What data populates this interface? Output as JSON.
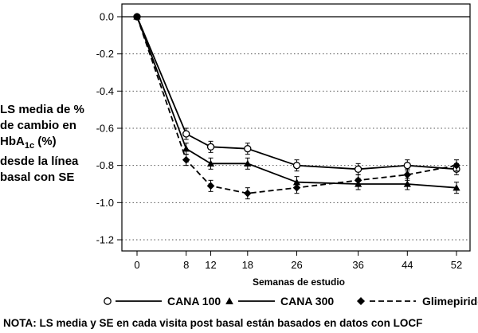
{
  "chart_data": {
    "type": "line",
    "ylabel_lines": [
      "LS media de %",
      "de cambio en",
      "HbA",
      "1c",
      " (%)",
      "desde la línea",
      "basal con SE"
    ],
    "xlabel": "Semanas de estudio",
    "x": [
      0,
      8,
      12,
      18,
      26,
      36,
      44,
      52
    ],
    "x_ticks": [
      "0",
      "8",
      "12",
      "18",
      "26",
      "36",
      "44",
      "52"
    ],
    "y_ticks": [
      "0.0",
      "-0.2",
      "-0.4",
      "-0.6",
      "-0.8",
      "-1.0",
      "-1.2"
    ],
    "y_tick_values": [
      0.0,
      -0.2,
      -0.4,
      -0.6,
      -0.8,
      -1.0,
      -1.2
    ],
    "ylim": [
      -1.3,
      0.05
    ],
    "grid": "horizontal dotted",
    "reference_line": 0.0,
    "series": [
      {
        "name": "CANA 100",
        "marker": "open-circle",
        "dash": "solid",
        "values": [
          0.0,
          -0.63,
          -0.7,
          -0.71,
          -0.8,
          -0.82,
          -0.8,
          -0.82
        ],
        "se": [
          0.01,
          0.03,
          0.03,
          0.03,
          0.03,
          0.03,
          0.03,
          0.03
        ]
      },
      {
        "name": "CANA 300",
        "marker": "filled-triangle",
        "dash": "solid",
        "values": [
          0.0,
          -0.71,
          -0.79,
          -0.79,
          -0.89,
          -0.9,
          -0.9,
          -0.92
        ],
        "se": [
          0.01,
          0.03,
          0.03,
          0.03,
          0.03,
          0.03,
          0.03,
          0.03
        ]
      },
      {
        "name": "Glimepiride",
        "marker": "filled-diamond",
        "dash": "dashed",
        "values": [
          0.0,
          -0.77,
          -0.91,
          -0.95,
          -0.92,
          -0.88,
          -0.85,
          -0.8
        ],
        "se": [
          0.01,
          0.03,
          0.03,
          0.03,
          0.03,
          0.03,
          0.03,
          0.03
        ]
      }
    ],
    "legend_position": "bottom",
    "colors": {
      "line": "#000000",
      "grid": "#555555"
    }
  },
  "note": "NOTA: LS media y SE en cada visita post basal están basados en datos con LOCF"
}
